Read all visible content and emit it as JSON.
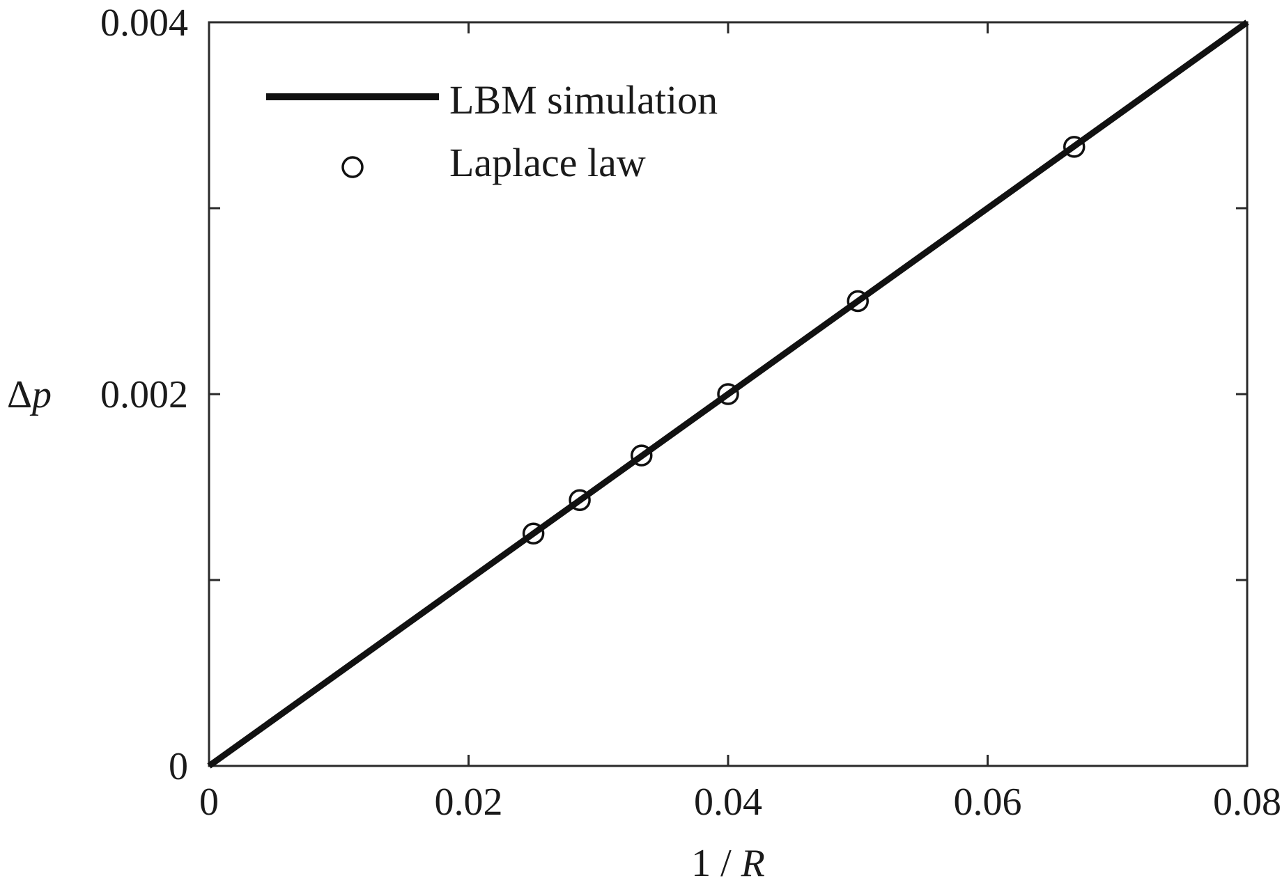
{
  "chart_data": {
    "type": "line",
    "title": "",
    "xlabel_num": "1",
    "xlabel_sep": " / ",
    "xlabel_var": "R",
    "ylabel_delta": "Δ",
    "ylabel_var": "p",
    "xlim": [
      0,
      0.08
    ],
    "ylim": [
      0,
      0.004
    ],
    "xticks": [
      0,
      0.02,
      0.04,
      0.06,
      0.08
    ],
    "xtick_labels": [
      "0",
      "0.02",
      "0.04",
      "0.06",
      "0.08"
    ],
    "yticks": [
      0,
      0.001,
      0.002,
      0.003,
      0.004
    ],
    "ytick_labels": [
      "0",
      "",
      "0.002",
      "",
      "0.004"
    ],
    "grid": false,
    "legend_position": "top-left",
    "series": [
      {
        "name": "LBM simulation",
        "style": "line",
        "color": "#111111",
        "x": [
          0,
          0.08
        ],
        "y": [
          0,
          0.004
        ]
      },
      {
        "name": "Laplace law",
        "style": "marker-circle",
        "color": "#111111",
        "x": [
          0.025,
          0.02857,
          0.03333,
          0.04,
          0.05,
          0.06667
        ],
        "y": [
          0.00125,
          0.00143,
          0.00167,
          0.002,
          0.0025,
          0.00333
        ]
      }
    ]
  }
}
